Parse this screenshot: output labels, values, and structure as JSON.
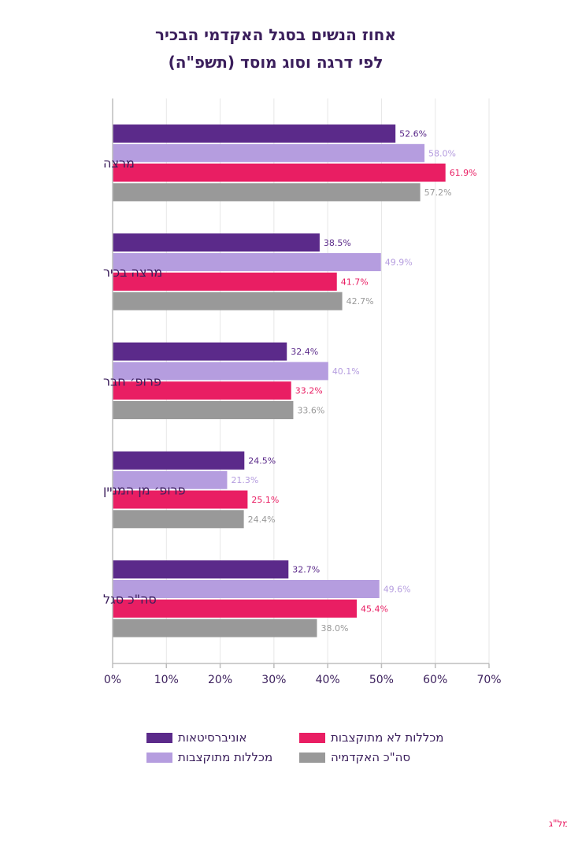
{
  "chart_data": {
    "type": "bar",
    "orientation": "horizontal",
    "title": [
      "אחוז הנשים בסגל האקדמי הבכיר",
      "לפי דרגה וסוג מוסד (תשפ\"ה)"
    ],
    "categories": [
      "מרצה",
      "מרצה בכיר",
      "פרופ׳ חבר",
      "פרופ׳ מן המניין",
      "סה\"כ סגל"
    ],
    "series": [
      {
        "name": "אוניברסיטאות",
        "color": "#5b2a8a",
        "label_color": "#5b2a8a",
        "values": [
          52.6,
          38.5,
          32.4,
          24.5,
          32.7
        ]
      },
      {
        "name": "מכללות מתוקצבות",
        "color": "#b59ddf",
        "label_color": "#b59ddf",
        "values": [
          58.0,
          49.9,
          40.1,
          21.3,
          49.6
        ]
      },
      {
        "name": "מכללות לא מתוקצבות",
        "color": "#e91e63",
        "label_color": "#e91e63",
        "values": [
          61.9,
          41.7,
          33.2,
          25.1,
          45.4
        ]
      },
      {
        "name": "סה\"כ האקדמיה",
        "color": "#999999",
        "label_color": "#999999",
        "values": [
          57.2,
          42.7,
          33.6,
          24.4,
          38.0
        ]
      }
    ],
    "value_labels": [
      [
        "52.6%",
        "38.5%",
        "32.4%",
        "24.5%",
        "32.7%"
      ],
      [
        "58.0%",
        "49.9%",
        "40.1%",
        "21.3%",
        "49.6%"
      ],
      [
        "61.9%",
        "41.7%",
        "33.2%",
        "25.1%",
        "45.4%"
      ],
      [
        "57.2%",
        "42.7%",
        "33.6%",
        "24.4%",
        "38.0%"
      ]
    ],
    "xlim": [
      0,
      70
    ],
    "xticks": [
      0,
      10,
      20,
      30,
      40,
      50,
      60,
      70
    ],
    "xtick_labels": [
      "0%",
      "10%",
      "20%",
      "30%",
      "40%",
      "50%",
      "60%",
      "70%"
    ],
    "grid": "vertical",
    "legend_position": "bottom"
  },
  "source": "מקור הנתונים: נתוני מל\"ג",
  "colors": {
    "title": "#3b1f5c",
    "source": "#e91e63"
  }
}
